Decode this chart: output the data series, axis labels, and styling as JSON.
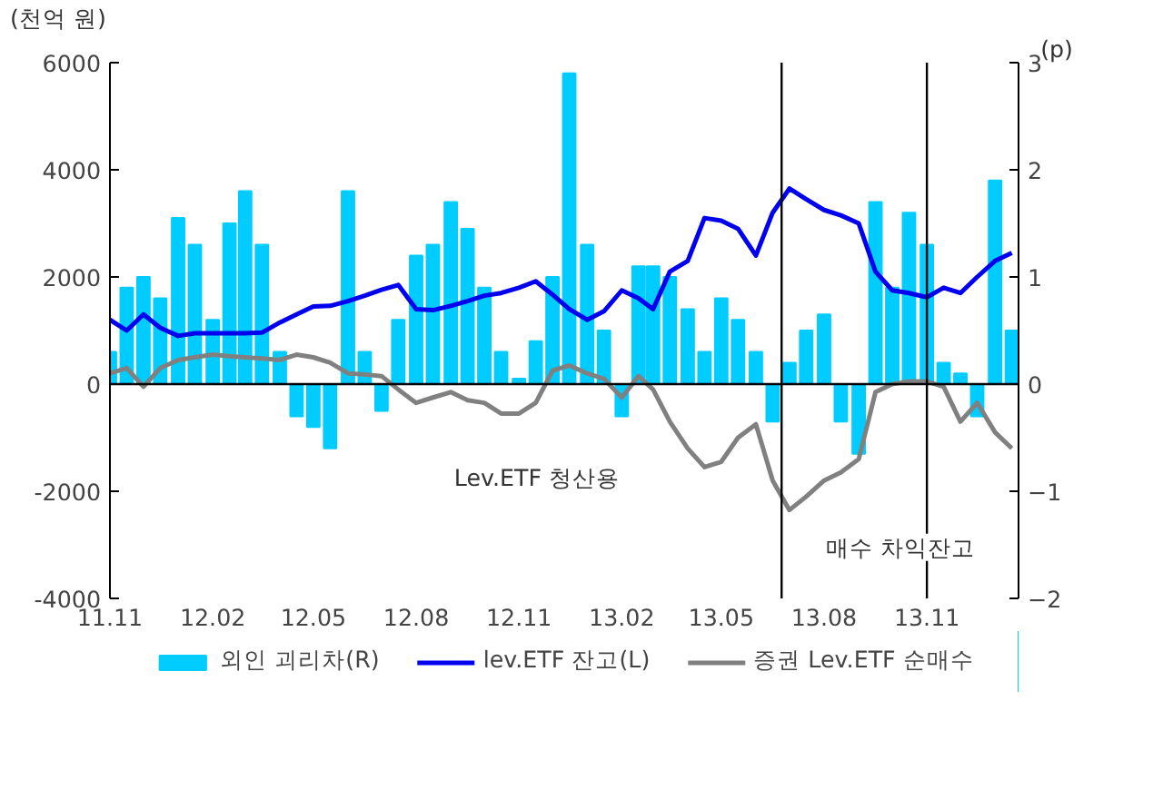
{
  "chart_data": {
    "type": "bar",
    "ylabel": "(천억 원)",
    "y2label": "(p)",
    "x": [
      "2011-11-01",
      "2011-11-16",
      "2011-12-01",
      "2011-12-16",
      "2012-01-01",
      "2012-01-16",
      "2012-02-01",
      "2012-02-16",
      "2012-03-01",
      "2012-03-16",
      "2012-04-01",
      "2012-04-16",
      "2012-05-01",
      "2012-05-16",
      "2012-06-01",
      "2012-06-16",
      "2012-07-01",
      "2012-07-16",
      "2012-08-01",
      "2012-08-16",
      "2012-09-01",
      "2012-09-16",
      "2012-10-01",
      "2012-10-16",
      "2012-11-01",
      "2012-11-16",
      "2012-12-01",
      "2012-12-16",
      "2013-01-01",
      "2013-01-16",
      "2013-02-01",
      "2013-02-16",
      "2013-03-01",
      "2013-03-16",
      "2013-04-01",
      "2013-04-16",
      "2013-05-01",
      "2013-05-16",
      "2013-06-01",
      "2013-06-16",
      "2013-07-01",
      "2013-07-16",
      "2013-08-01",
      "2013-08-16",
      "2013-09-01",
      "2013-09-16",
      "2013-10-01",
      "2013-10-16",
      "2013-11-01",
      "2013-11-16",
      "2013-12-01",
      "2013-12-16",
      "2014-01-01",
      "2014-01-16"
    ],
    "series": [
      {
        "name": "외인 괴리차(R)",
        "axis": "y2",
        "color": "#00ccff",
        "values": [
          0.3,
          0.9,
          1.0,
          0.8,
          1.55,
          1.3,
          0.6,
          1.5,
          1.8,
          1.3,
          0.3,
          -0.3,
          -0.4,
          -0.6,
          1.8,
          0.3,
          -0.25,
          0.6,
          1.2,
          1.3,
          1.7,
          1.45,
          0.9,
          0.3,
          0.05,
          0.4,
          1.0,
          2.9,
          1.3,
          0.5,
          -0.3,
          1.1,
          1.1,
          1.0,
          0.7,
          0.3,
          0.8,
          0.6,
          0.3,
          -0.35,
          0.2,
          0.5,
          0.65,
          -0.35,
          -0.65,
          1.7,
          0.9,
          1.6,
          1.3,
          0.2,
          0.1,
          -0.3,
          1.9,
          0.5
        ]
      },
      {
        "name": "lev.ETF 잔고(L)",
        "type": "line",
        "color": "#0000ee",
        "values": [
          1200,
          1000,
          1300,
          1050,
          900,
          950,
          950,
          950,
          950,
          960,
          1150,
          1300,
          1450,
          1460,
          1550,
          1650,
          1760,
          1850,
          1400,
          1380,
          1460,
          1550,
          1650,
          1700,
          1800,
          1920,
          1670,
          1400,
          1200,
          1360,
          1750,
          1600,
          1400,
          2100,
          2300,
          3100,
          3050,
          2900,
          2400,
          3200,
          3650,
          3450,
          3250,
          3150,
          3000,
          2100,
          1750,
          1700,
          1620,
          1800,
          1700,
          2000,
          2300,
          2450
        ]
      },
      {
        "name": "증권 Lev.ETF 순매수",
        "type": "line",
        "color": "#808080",
        "values": [
          200,
          300,
          -50,
          300,
          450,
          500,
          550,
          520,
          500,
          480,
          450,
          550,
          500,
          400,
          200,
          180,
          150,
          -100,
          -350,
          -250,
          -150,
          -300,
          -350,
          -550,
          -550,
          -350,
          250,
          350,
          200,
          100,
          -250,
          150,
          -100,
          -700,
          -1200,
          -1550,
          -1450,
          -1000,
          -750,
          -1800,
          -2350,
          -2100,
          -1800,
          -1650,
          -1400,
          -150,
          0,
          50,
          50,
          -50,
          -700,
          -350,
          -900,
          -1200
        ]
      }
    ],
    "xlim": [
      "2011-11-01",
      "2014-01-22"
    ],
    "xticks": [
      {
        "value": "2011-11-01",
        "label": "11.11"
      },
      {
        "value": "2012-02-01",
        "label": "12.02"
      },
      {
        "value": "2012-05-01",
        "label": "12.05"
      },
      {
        "value": "2012-08-01",
        "label": "12.08"
      },
      {
        "value": "2012-11-01",
        "label": "12.11"
      },
      {
        "value": "2013-02-01",
        "label": "13.02"
      },
      {
        "value": "2013-05-01",
        "label": "13.05"
      },
      {
        "value": "2013-08-01",
        "label": "13.08"
      },
      {
        "value": "2013-11-01",
        "label": "13.11"
      }
    ],
    "ylim": [
      -4000,
      6000
    ],
    "yticks": [
      -4000,
      -2000,
      0,
      2000,
      4000,
      6000
    ],
    "y2lim": [
      -2,
      3
    ],
    "y2ticks": [
      {
        "value": -2,
        "label": "−2"
      },
      {
        "value": -1,
        "label": "−1"
      },
      0,
      1,
      2,
      3
    ],
    "ref_lines": [
      {
        "axis": "y",
        "value": 0,
        "color": "#000000"
      },
      {
        "axis": "x",
        "value": "2013-06-24",
        "color": "#000000"
      },
      {
        "axis": "x",
        "value": "2013-11-01",
        "color": "#000000"
      }
    ],
    "annotations": [
      "Lev.ETF 청산용",
      "매수 차익잔고"
    ],
    "grid": false,
    "legend": "bottom"
  }
}
